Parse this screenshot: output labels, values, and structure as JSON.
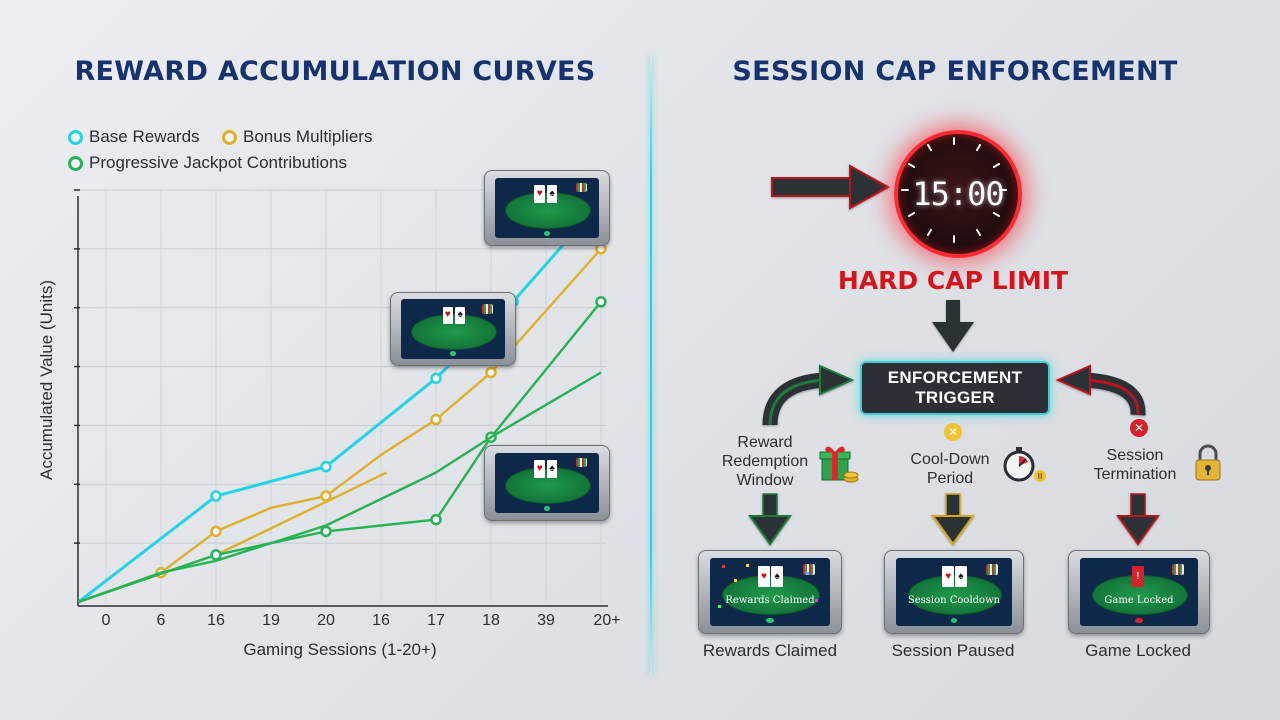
{
  "left_panel": {
    "title": "REWARD ACCUMULATION CURVES"
  },
  "right_panel": {
    "title": "SESSION CAP ENFORCEMENT",
    "timer_display": "15:00",
    "hard_cap_label": "HARD CAP LIMIT",
    "trigger_line1": "ENFORCEMENT",
    "trigger_line2": "TRIGGER",
    "branches": [
      {
        "label_lines": [
          "Reward",
          "Redemption",
          "Window"
        ],
        "icon": "gift-coins-icon",
        "outcome": "Rewards Claimed",
        "screen_text": "Rewards Claimed",
        "arrow_color": "#1e7a3c"
      },
      {
        "label_lines": [
          "Cool-Down",
          "Period"
        ],
        "icon": "stopwatch-icon",
        "outcome": "Session Paused",
        "screen_text": "Session Cooldown",
        "arrow_color": "#d9a514"
      },
      {
        "label_lines": [
          "Session",
          "Termination"
        ],
        "icon": "padlock-icon",
        "outcome": "Game Locked",
        "screen_text": "Game Locked",
        "arrow_color": "#b8141c"
      }
    ],
    "colors": {
      "alert": "#d7141c",
      "timer_glow": "#ff2a34",
      "trigger_border": "#49c8d2"
    }
  },
  "chart_data": {
    "type": "line",
    "title": "REWARD ACCUMULATION CURVES",
    "xlabel": "Gaming Sessions (1-20+)",
    "ylabel": "Accumulated Value (Units)",
    "categories": [
      "0",
      "6",
      "16",
      "19",
      "20",
      "16",
      "17",
      "18",
      "39",
      "20+"
    ],
    "ylim": [
      0,
      7
    ],
    "grid": true,
    "legend_placement": "top-left",
    "series": [
      {
        "name": "Base Rewards",
        "color": "#23d3e6",
        "points": [
          [
            -0.5,
            0
          ],
          [
            2,
            1.8
          ],
          [
            4,
            2.3
          ],
          [
            6,
            3.8
          ],
          [
            7.4,
            5.1
          ],
          [
            9,
            6.8
          ]
        ],
        "markers": [
          2,
          4,
          6,
          7.4,
          9
        ]
      },
      {
        "name": "Bonus Multipliers",
        "color": "#ddb12a",
        "points": [
          [
            -0.5,
            0
          ],
          [
            1,
            0.5
          ],
          [
            2,
            1.2
          ],
          [
            3,
            1.6
          ],
          [
            4,
            1.8
          ],
          [
            5,
            2.5
          ],
          [
            6,
            3.1
          ],
          [
            7,
            3.9
          ],
          [
            9,
            6.0
          ]
        ],
        "markers": [
          1,
          2,
          4,
          6,
          7,
          9
        ]
      },
      {
        "name": "Bonus Multipliers",
        "color": "#ddb12a",
        "points": [
          [
            -0.5,
            0
          ],
          [
            2,
            0.8
          ],
          [
            4,
            1.7
          ],
          [
            5.1,
            2.2
          ]
        ],
        "markers": []
      },
      {
        "name": "Progressive Jackpot Contributions",
        "color": "#27b255",
        "points": [
          [
            -0.5,
            0
          ],
          [
            2,
            0.8
          ],
          [
            4,
            1.2
          ],
          [
            6,
            1.4
          ],
          [
            7,
            2.8
          ],
          [
            9,
            5.1
          ]
        ],
        "markers": [
          2,
          4,
          6,
          7,
          9
        ]
      },
      {
        "name": "Progressive Jackpot Contributions",
        "color": "#27b255",
        "points": [
          [
            -0.5,
            0
          ],
          [
            1,
            0.5
          ],
          [
            2,
            0.7
          ],
          [
            4,
            1.3
          ],
          [
            6,
            2.2
          ],
          [
            7,
            2.8
          ],
          [
            9,
            3.9
          ]
        ],
        "markers": []
      }
    ]
  }
}
